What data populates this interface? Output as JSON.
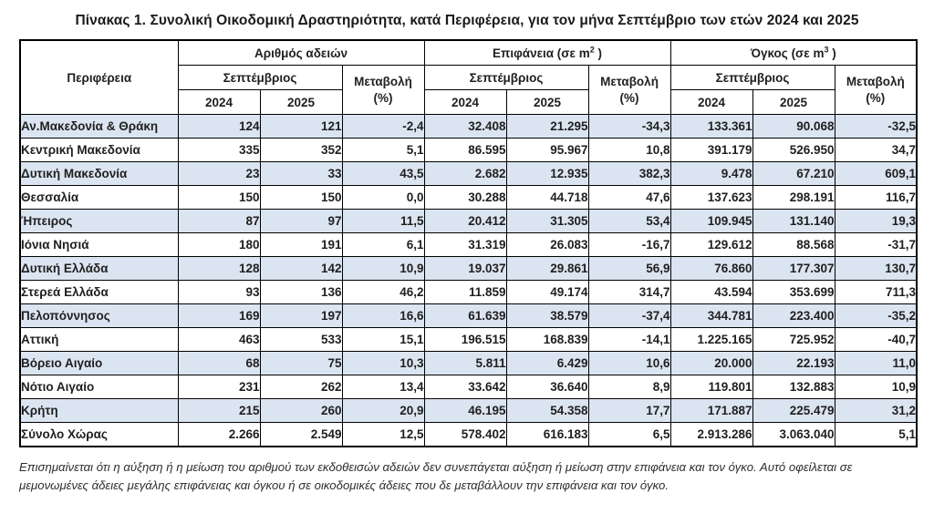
{
  "title": "Πίνακας 1. Συνολική Οικοδομική Δραστηριότητα, κατά  Περιφέρεια, για τον μήνα Σεπτέμβριο των ετών 2024 και 2025",
  "colors": {
    "row_highlight": "#dbe5f1",
    "border": "#000000",
    "text": "#1f1f1f"
  },
  "table": {
    "header": {
      "region": "Περιφέρεια",
      "month": "Σεπτέμβριος",
      "years": [
        "2024",
        "2025"
      ],
      "change_label": "Μεταβολή",
      "change_unit": "(%)",
      "groups": [
        {
          "label": "Αριθμός αδειών",
          "sup": "",
          "suffix": ""
        },
        {
          "label": "Επιφάνεια (σε m",
          "sup": "2",
          "suffix": " )"
        },
        {
          "label": "Όγκος (σε m",
          "sup": "3",
          "suffix": " )"
        }
      ]
    },
    "rows": [
      {
        "region": "Αν.Μακεδονία & Θράκη",
        "values": [
          "124",
          "121",
          "-2,4",
          "32.408",
          "21.295",
          "-34,3",
          "133.361",
          "90.068",
          "-32,5"
        ]
      },
      {
        "region": "Κεντρική Μακεδονία",
        "values": [
          "335",
          "352",
          "5,1",
          "86.595",
          "95.967",
          "10,8",
          "391.179",
          "526.950",
          "34,7"
        ]
      },
      {
        "region": "Δυτική Μακεδονία",
        "values": [
          "23",
          "33",
          "43,5",
          "2.682",
          "12.935",
          "382,3",
          "9.478",
          "67.210",
          "609,1"
        ]
      },
      {
        "region": "Θεσσαλία",
        "values": [
          "150",
          "150",
          "0,0",
          "30.288",
          "44.718",
          "47,6",
          "137.623",
          "298.191",
          "116,7"
        ]
      },
      {
        "region": "Ήπειρος",
        "values": [
          "87",
          "97",
          "11,5",
          "20.412",
          "31.305",
          "53,4",
          "109.945",
          "131.140",
          "19,3"
        ]
      },
      {
        "region": "Ιόνια Νησιά",
        "values": [
          "180",
          "191",
          "6,1",
          "31.319",
          "26.083",
          "-16,7",
          "129.612",
          "88.568",
          "-31,7"
        ]
      },
      {
        "region": "Δυτική Ελλάδα",
        "values": [
          "128",
          "142",
          "10,9",
          "19.037",
          "29.861",
          "56,9",
          "76.860",
          "177.307",
          "130,7"
        ]
      },
      {
        "region": "Στερεά Ελλάδα",
        "values": [
          "93",
          "136",
          "46,2",
          "11.859",
          "49.174",
          "314,7",
          "43.594",
          "353.699",
          "711,3"
        ]
      },
      {
        "region": "Πελοπόννησος",
        "values": [
          "169",
          "197",
          "16,6",
          "61.639",
          "38.579",
          "-37,4",
          "344.781",
          "223.400",
          "-35,2"
        ]
      },
      {
        "region": "Αττική",
        "values": [
          "463",
          "533",
          "15,1",
          "196.515",
          "168.839",
          "-14,1",
          "1.225.165",
          "725.952",
          "-40,7"
        ]
      },
      {
        "region": "Βόρειο Αιγαίο",
        "values": [
          "68",
          "75",
          "10,3",
          "5.811",
          "6.429",
          "10,6",
          "20.000",
          "22.193",
          "11,0"
        ]
      },
      {
        "region": "Νότιο Αιγαίο",
        "values": [
          "231",
          "262",
          "13,4",
          "33.642",
          "36.640",
          "8,9",
          "119.801",
          "132.883",
          "10,9"
        ]
      },
      {
        "region": "Κρήτη",
        "values": [
          "215",
          "260",
          "20,9",
          "46.195",
          "54.358",
          "17,7",
          "171.887",
          "225.479",
          "31,2"
        ]
      }
    ],
    "total": {
      "region": "Σύνολο Χώρας",
      "values": [
        "2.266",
        "2.549",
        "12,5",
        "578.402",
        "616.183",
        "6,5",
        "2.913.286",
        "3.063.040",
        "5,1"
      ]
    }
  },
  "footnote": "Επισημαίνεται ότι η αύξηση ή η μείωση του αριθμού των εκδοθεισών αδειών δεν συνεπάγεται αύξηση ή μείωση στην επιφάνεια και τον όγκο. Αυτό οφείλεται σε μεμονωμένες άδειες μεγάλης επιφάνειας και όγκου ή σε οικοδομικές άδειες που δε μεταβάλλουν την επιφάνεια και τον όγκο."
}
